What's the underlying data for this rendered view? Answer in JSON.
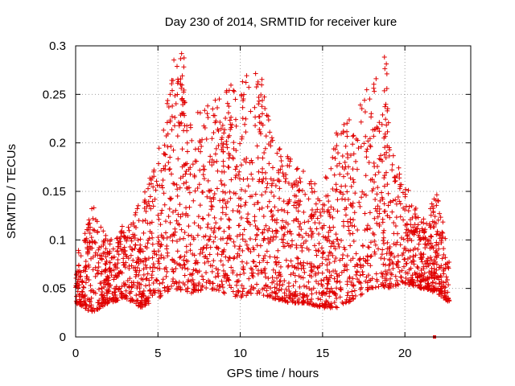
{
  "chart_data": {
    "type": "scatter",
    "title": "Day 230 of 2014, SRMTID for receiver kure",
    "xlabel": "GPS time / hours",
    "ylabel": "SRMTID / TECUs",
    "xlim": [
      0,
      24
    ],
    "ylim": [
      0,
      0.3
    ],
    "xticks": [
      0,
      5,
      10,
      15,
      20
    ],
    "xtick_labels": [
      "0",
      "5",
      "10",
      "15",
      "20"
    ],
    "yticks": [
      0,
      0.05,
      0.1,
      0.15,
      0.2,
      0.25,
      0.3
    ],
    "ytick_labels": [
      "0",
      "0.05",
      "0.1",
      "0.15",
      "0.2",
      "0.25",
      "0.3"
    ],
    "grid": true,
    "marker": "+",
    "color": "#e00000",
    "envelope": {
      "x": [
        0,
        1,
        2,
        3,
        4,
        5,
        6,
        7,
        8,
        9,
        10,
        11,
        12,
        13,
        14,
        15,
        16,
        17,
        18,
        19,
        20,
        21,
        22,
        22.7
      ],
      "y_min": [
        0.035,
        0.025,
        0.035,
        0.04,
        0.03,
        0.04,
        0.05,
        0.045,
        0.05,
        0.045,
        0.04,
        0.045,
        0.04,
        0.035,
        0.035,
        0.03,
        0.03,
        0.04,
        0.05,
        0.05,
        0.055,
        0.05,
        0.045,
        0.035
      ],
      "y_max": [
        0.09,
        0.14,
        0.1,
        0.12,
        0.14,
        0.19,
        0.29,
        0.23,
        0.25,
        0.26,
        0.26,
        0.29,
        0.2,
        0.19,
        0.17,
        0.15,
        0.23,
        0.22,
        0.29,
        0.2,
        0.16,
        0.12,
        0.15,
        0.08
      ],
      "note": "approximate spread of SRMTID values per hour (data units)"
    },
    "peaks": [
      {
        "x": 6.5,
        "y": 0.295
      },
      {
        "x": 11.2,
        "y": 0.295
      },
      {
        "x": 18.9,
        "y": 0.295
      },
      {
        "x": 9.3,
        "y": 0.26
      }
    ],
    "outliers": [
      {
        "x": 21.8,
        "y": 0.0
      }
    ],
    "n_points": 2600
  }
}
